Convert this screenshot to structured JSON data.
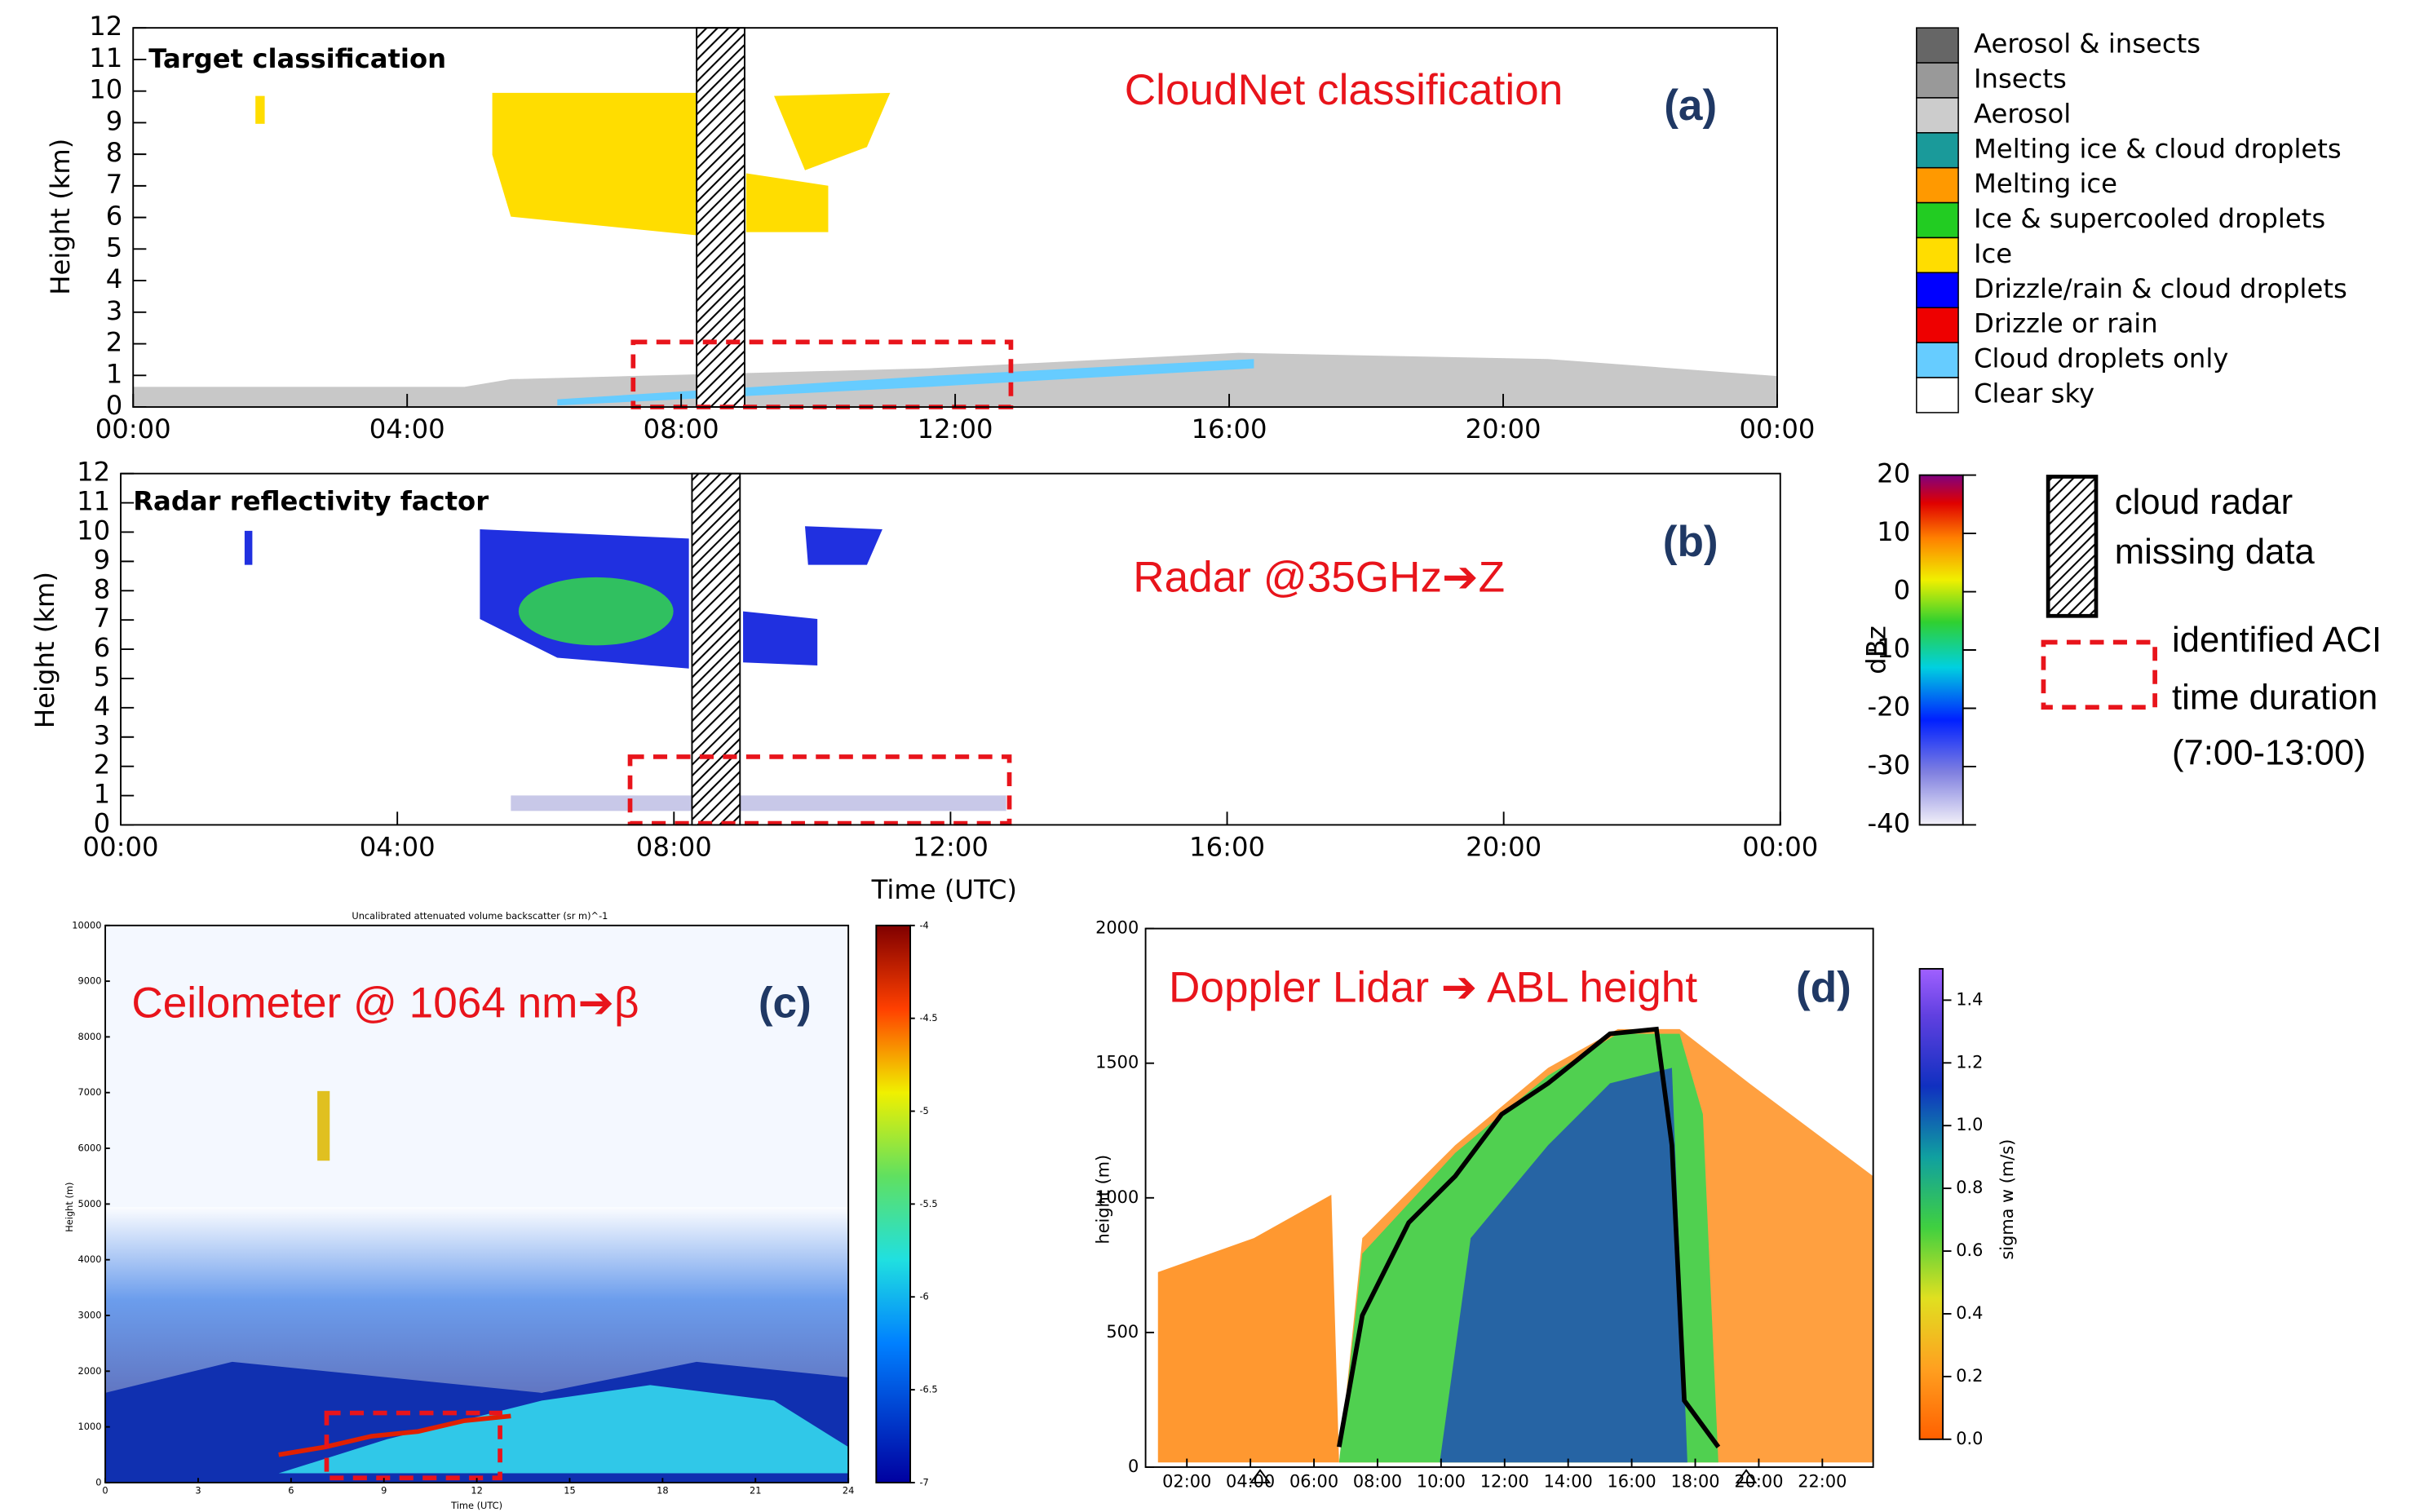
{
  "chart_data": [
    {
      "type": "heatmap",
      "panel": "(a)",
      "title": "Target classification",
      "annotation": "CloudNet classification",
      "ylabel": "Height (km)",
      "xlim": [
        0,
        24
      ],
      "xticks": [
        {
          "value": 0,
          "label": "00:00"
        },
        {
          "value": 4,
          "label": "04:00"
        },
        {
          "value": 8,
          "label": "08:00"
        },
        {
          "value": 12,
          "label": "12:00"
        },
        {
          "value": 16,
          "label": "16:00"
        },
        {
          "value": 20,
          "label": "20:00"
        },
        {
          "value": 24,
          "label": "00:00"
        }
      ],
      "ylim": [
        0,
        12
      ],
      "yticks": [
        0,
        1,
        2,
        3,
        4,
        5,
        6,
        7,
        8,
        9,
        10,
        11,
        12
      ],
      "legend": {
        "categories": [
          "Aerosol & insects",
          "Insects",
          "Aerosol",
          "Melting ice & cloud droplets",
          "Melting ice",
          "Ice & supercooled droplets",
          "Ice",
          "Drizzle/rain & cloud droplets",
          "Drizzle or rain",
          "Cloud droplets only",
          "Clear sky"
        ],
        "colors": [
          "#666666",
          "#999999",
          "#cccccc",
          "#1a9a9a",
          "#ff9900",
          "#22cc22",
          "#ffdd00",
          "#0000ff",
          "#ee0000",
          "#66ccff",
          "#ffffff"
        ]
      }
    },
    {
      "type": "heatmap",
      "panel": "(b)",
      "title": "Radar reflectivity factor",
      "annotation": "Radar @35GHz➔Z",
      "ylabel": "Height (km)",
      "xlabel": "Time (UTC)",
      "xlim": [
        0,
        24
      ],
      "xticks": [
        {
          "value": 0,
          "label": "00:00"
        },
        {
          "value": 4,
          "label": "04:00"
        },
        {
          "value": 8,
          "label": "08:00"
        },
        {
          "value": 12,
          "label": "12:00"
        },
        {
          "value": 16,
          "label": "16:00"
        },
        {
          "value": 20,
          "label": "20:00"
        },
        {
          "value": 24,
          "label": "00:00"
        }
      ],
      "ylim": [
        0,
        12
      ],
      "yticks": [
        0,
        1,
        2,
        3,
        4,
        5,
        6,
        7,
        8,
        9,
        10,
        11,
        12
      ],
      "colorbar": {
        "label": "dBz",
        "lim": [
          -40,
          20
        ],
        "ticks": [
          -40,
          -30,
          -20,
          -10,
          0,
          10,
          20
        ]
      }
    },
    {
      "type": "heatmap",
      "panel": "(c)",
      "title": "Uncalibrated attenuated volume backscatter (sr m)^-1",
      "annotation": "Ceilometer @ 1064 nm➔β",
      "ylabel": "Height (m)",
      "xlabel": "Time (UTC)",
      "xlim": [
        0,
        24
      ],
      "xticks": [
        0,
        3,
        6,
        9,
        12,
        15,
        18,
        21,
        24
      ],
      "ylim": [
        0,
        10000
      ],
      "yticks": [
        0,
        1000,
        2000,
        3000,
        4000,
        5000,
        6000,
        7000,
        8000,
        9000,
        10000
      ],
      "colorbar": {
        "lim": [
          -7,
          -4
        ],
        "ticks": [
          -7,
          -6.5,
          -6,
          -5.5,
          -5,
          -4.5,
          -4
        ]
      }
    },
    {
      "type": "heatmap",
      "panel": "(d)",
      "annotation": "Doppler Lidar ➔ ABL height",
      "ylabel": "height (m)",
      "xlim": [
        0.7,
        23.6
      ],
      "xticks": [
        {
          "value": 2,
          "label": "02:00"
        },
        {
          "value": 4,
          "label": "04:00"
        },
        {
          "value": 6,
          "label": "06:00"
        },
        {
          "value": 8,
          "label": "08:00"
        },
        {
          "value": 10,
          "label": "10:00"
        },
        {
          "value": 12,
          "label": "12:00"
        },
        {
          "value": 14,
          "label": "14:00"
        },
        {
          "value": 16,
          "label": "16:00"
        },
        {
          "value": 18,
          "label": "18:00"
        },
        {
          "value": 20,
          "label": "20:00"
        },
        {
          "value": 22,
          "label": "22:00"
        }
      ],
      "ylim": [
        0,
        2000
      ],
      "yticks": [
        0,
        500,
        1000,
        1500,
        2000
      ],
      "colorbar": {
        "label": "sigma w (m/s)",
        "lim": [
          0,
          1.5
        ],
        "ticks": [
          {
            "value": 0,
            "label": "0.0"
          },
          0.2,
          0.4,
          0.6,
          0.8,
          {
            "value": 1,
            "label": "1.0"
          },
          1.2,
          1.4
        ]
      }
    }
  ],
  "key": {
    "hatch": [
      "cloud radar",
      "missing data"
    ],
    "aci": [
      "identified ACI",
      "time duration",
      "(7:00-13:00)"
    ]
  }
}
